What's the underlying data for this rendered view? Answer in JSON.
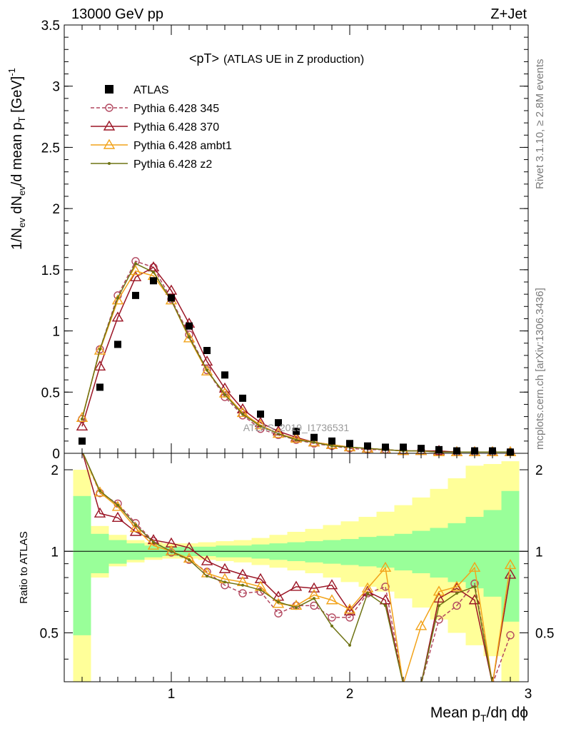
{
  "header": {
    "left_title": "13000 GeV pp",
    "right_title": "Z+Jet"
  },
  "main_plot": {
    "label": "<pT>",
    "label_suffix": "(ATLAS UE in Z production)",
    "ylabel_main": "1/N",
    "ylabel_sub1": "ev",
    "ylabel_mid": " dN",
    "ylabel_sub2": "ev",
    "ylabel_mid2": "/d mean p",
    "ylabel_sub3": "T",
    "ylabel_end": " [GeV]",
    "ylabel_sup": "-1",
    "watermark": "ATLAS_2019_I1736531",
    "yticks": [
      "0",
      "0.5",
      "1",
      "1.5",
      "2",
      "2.5",
      "3",
      "3.5"
    ]
  },
  "ratio_plot": {
    "ylabel": "Ratio to ATLAS",
    "yticks": [
      "0.5",
      "1",
      "2"
    ],
    "yticks_right": [
      "0.5",
      "1",
      "2"
    ]
  },
  "xaxis": {
    "label_main": "Mean p",
    "label_sub": "T",
    "label_end": "/dη dϕ",
    "ticks": [
      "1",
      "2",
      "3"
    ]
  },
  "side_text": {
    "rivet": "Rivet 3.1.10, ≥ 2.8M events",
    "mcplots": "mcplots.cern.ch [arXiv:1306.3436]"
  },
  "legend": [
    {
      "name": "ATLAS",
      "color": "#000000",
      "marker": "square"
    },
    {
      "name": "Pythia 6.428 345",
      "color": "#b2475f",
      "marker": "circle",
      "dashed": true
    },
    {
      "name": "Pythia 6.428 370",
      "color": "#9b1525",
      "marker": "triangle"
    },
    {
      "name": "Pythia 6.428 ambt1",
      "color": "#f2a31a",
      "marker": "triangle"
    },
    {
      "name": "Pythia 6.428 z2",
      "color": "#6e7314",
      "marker": "dot"
    }
  ],
  "chart_data": {
    "type": "scatter",
    "xlim": [
      0.4,
      3.0
    ],
    "ylim_main": [
      0,
      3.5
    ],
    "ylim_ratio": [
      0.33,
      2.3
    ],
    "ratio_log_scale": true,
    "x": [
      0.5,
      0.6,
      0.7,
      0.8,
      0.9,
      1.0,
      1.1,
      1.2,
      1.3,
      1.4,
      1.5,
      1.6,
      1.7,
      1.8,
      1.9,
      2.0,
      2.1,
      2.2,
      2.3,
      2.4,
      2.5,
      2.6,
      2.7,
      2.8,
      2.9
    ],
    "series": [
      {
        "name": "ATLAS",
        "values": [
          0.1,
          0.54,
          0.89,
          1.29,
          1.41,
          1.27,
          1.04,
          0.84,
          0.64,
          0.45,
          0.32,
          0.25,
          0.18,
          0.13,
          0.1,
          0.08,
          0.06,
          0.05,
          0.05,
          0.04,
          0.03,
          0.02,
          0.02,
          0.02,
          0.01
        ]
      },
      {
        "name": "Pythia 6.428 345",
        "values": [
          0.28,
          0.85,
          1.29,
          1.57,
          1.52,
          1.26,
          0.97,
          0.68,
          0.46,
          0.31,
          0.2,
          0.15,
          0.11,
          0.08,
          0.06,
          0.04,
          0.03,
          0.03,
          0.02,
          0.02,
          0.01,
          0.01,
          0.01,
          0.01,
          0.01
        ]
      },
      {
        "name": "Pythia 6.428 370",
        "values": [
          0.22,
          0.71,
          1.11,
          1.44,
          1.52,
          1.33,
          1.06,
          0.75,
          0.53,
          0.36,
          0.25,
          0.18,
          0.13,
          0.09,
          0.07,
          0.05,
          0.04,
          0.03,
          0.02,
          0.02,
          0.02,
          0.01,
          0.01,
          0.01,
          0.01
        ]
      },
      {
        "name": "Pythia 6.428 ambt1",
        "values": [
          0.29,
          0.84,
          1.25,
          1.49,
          1.45,
          1.25,
          0.94,
          0.67,
          0.49,
          0.33,
          0.23,
          0.16,
          0.12,
          0.09,
          0.07,
          0.05,
          0.04,
          0.03,
          0.02,
          0.02,
          0.01,
          0.01,
          0.01,
          0.01,
          0.01
        ]
      },
      {
        "name": "Pythia 6.428 z2",
        "values": [
          0.28,
          0.85,
          1.27,
          1.55,
          1.48,
          1.25,
          0.95,
          0.68,
          0.48,
          0.32,
          0.22,
          0.16,
          0.11,
          0.09,
          0.06,
          0.05,
          0.04,
          0.03,
          0.02,
          0.02,
          0.01,
          0.01,
          0.01,
          0.01,
          0.01
        ]
      }
    ],
    "ratio_series": [
      {
        "name": "Pythia 6.428 345",
        "values": [
          2.9,
          1.64,
          1.5,
          1.27,
          1.09,
          0.99,
          0.93,
          0.84,
          0.75,
          0.7,
          0.71,
          0.59,
          0.63,
          0.63,
          0.57,
          0.57,
          0.7,
          0.74,
          0.29,
          0.31,
          0.56,
          0.63,
          0.76,
          0.26,
          0.49
        ]
      },
      {
        "name": "Pythia 6.428 370",
        "values": [
          2.4,
          1.38,
          1.33,
          1.18,
          1.1,
          1.07,
          1.03,
          0.92,
          0.86,
          0.82,
          0.79,
          0.68,
          0.74,
          0.73,
          0.75,
          0.6,
          0.71,
          0.66,
          0.3,
          0.3,
          0.67,
          0.73,
          0.66,
          0.3,
          0.82
        ]
      },
      {
        "name": "Pythia 6.428 ambt1",
        "values": [
          3.0,
          1.65,
          1.46,
          1.22,
          1.05,
          1.0,
          0.94,
          0.83,
          0.79,
          0.77,
          0.74,
          0.64,
          0.63,
          0.69,
          0.66,
          0.61,
          0.73,
          0.87,
          0.31,
          0.53,
          0.71,
          0.74,
          0.87,
          0.31,
          0.89
        ]
      },
      {
        "name": "Pythia 6.428 z2",
        "values": [
          2.9,
          1.67,
          1.48,
          1.25,
          1.08,
          1.0,
          0.93,
          0.81,
          0.77,
          0.75,
          0.72,
          0.65,
          0.62,
          0.67,
          0.53,
          0.45,
          0.7,
          0.63,
          0.3,
          0.3,
          0.63,
          0.7,
          0.74,
          0.29,
          0.28
        ]
      }
    ],
    "band_inner": [
      [
        0.49,
        1.6
      ],
      [
        0.83,
        1.16
      ],
      [
        0.9,
        1.1
      ],
      [
        0.93,
        1.07
      ],
      [
        0.95,
        1.05
      ],
      [
        0.96,
        1.04
      ],
      [
        0.96,
        1.04
      ],
      [
        0.96,
        1.04
      ],
      [
        0.95,
        1.05
      ],
      [
        0.95,
        1.05
      ],
      [
        0.94,
        1.06
      ],
      [
        0.93,
        1.07
      ],
      [
        0.92,
        1.08
      ],
      [
        0.91,
        1.09
      ],
      [
        0.9,
        1.1
      ],
      [
        0.89,
        1.11
      ],
      [
        0.88,
        1.13
      ],
      [
        0.87,
        1.14
      ],
      [
        0.85,
        1.16
      ],
      [
        0.83,
        1.19
      ],
      [
        0.8,
        1.22
      ],
      [
        0.77,
        1.27
      ],
      [
        0.73,
        1.34
      ],
      [
        0.68,
        1.42
      ],
      [
        0.55,
        1.67
      ]
    ],
    "band_outer": [
      [
        0.33,
        2.0
      ],
      [
        0.8,
        1.24
      ],
      [
        0.88,
        1.15
      ],
      [
        0.91,
        1.1
      ],
      [
        0.93,
        1.08
      ],
      [
        0.94,
        1.07
      ],
      [
        0.94,
        1.07
      ],
      [
        0.93,
        1.08
      ],
      [
        0.92,
        1.09
      ],
      [
        0.91,
        1.1
      ],
      [
        0.89,
        1.12
      ],
      [
        0.87,
        1.15
      ],
      [
        0.85,
        1.18
      ],
      [
        0.83,
        1.21
      ],
      [
        0.8,
        1.25
      ],
      [
        0.77,
        1.29
      ],
      [
        0.74,
        1.34
      ],
      [
        0.71,
        1.4
      ],
      [
        0.67,
        1.48
      ],
      [
        0.62,
        1.58
      ],
      [
        0.56,
        1.7
      ],
      [
        0.5,
        1.86
      ],
      [
        0.45,
        2.07
      ],
      [
        0.41,
        2.1
      ],
      [
        0.33,
        2.15
      ]
    ]
  }
}
